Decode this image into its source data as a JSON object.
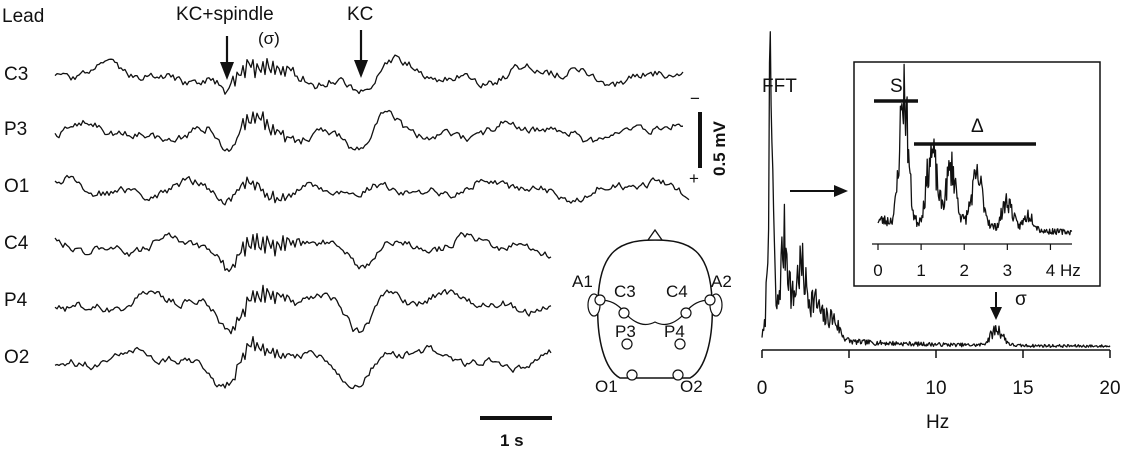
{
  "eeg": {
    "header": "Lead",
    "leads": [
      "C3",
      "P3",
      "O1",
      "C4",
      "P4",
      "O2"
    ],
    "annotations": {
      "kc_spindle": "KC+spindle",
      "sigma_paren": "(σ)",
      "kc": "KC"
    },
    "scale_voltage": "0.5 mV",
    "scale_minus": "−",
    "scale_plus": "+",
    "scale_time": "1 s"
  },
  "electrode_map": {
    "electrodes": [
      "A1",
      "C3",
      "C4",
      "A2",
      "P3",
      "P4",
      "O1",
      "O2"
    ]
  },
  "chart_data": [
    {
      "type": "line",
      "title": "FFT",
      "xlabel": "Hz",
      "ylabel": "",
      "xlim": [
        0,
        20
      ],
      "x_ticks": [
        "0",
        "5",
        "10",
        "15",
        "20"
      ],
      "annotation": "σ",
      "annotation_x": 13.5,
      "peaks_hz": [
        0.5,
        1.3,
        2.2,
        3.0,
        4.0,
        13.5
      ],
      "relative_power": [
        1.0,
        0.42,
        0.3,
        0.16,
        0.1,
        0.07
      ]
    },
    {
      "type": "line",
      "title": "",
      "xlabel": "Hz",
      "xlim": [
        0,
        4.5
      ],
      "x_ticks": [
        "0",
        "1",
        "2",
        "3",
        "4"
      ],
      "bands": [
        {
          "label": "S",
          "from": 0,
          "to": 1
        },
        {
          "label": "Δ",
          "from": 1,
          "to": 4
        }
      ],
      "peaks_hz": [
        0.6,
        1.25,
        1.7,
        2.3,
        3.0,
        3.5
      ],
      "relative_power": [
        1.0,
        0.55,
        0.45,
        0.38,
        0.22,
        0.12
      ]
    }
  ]
}
